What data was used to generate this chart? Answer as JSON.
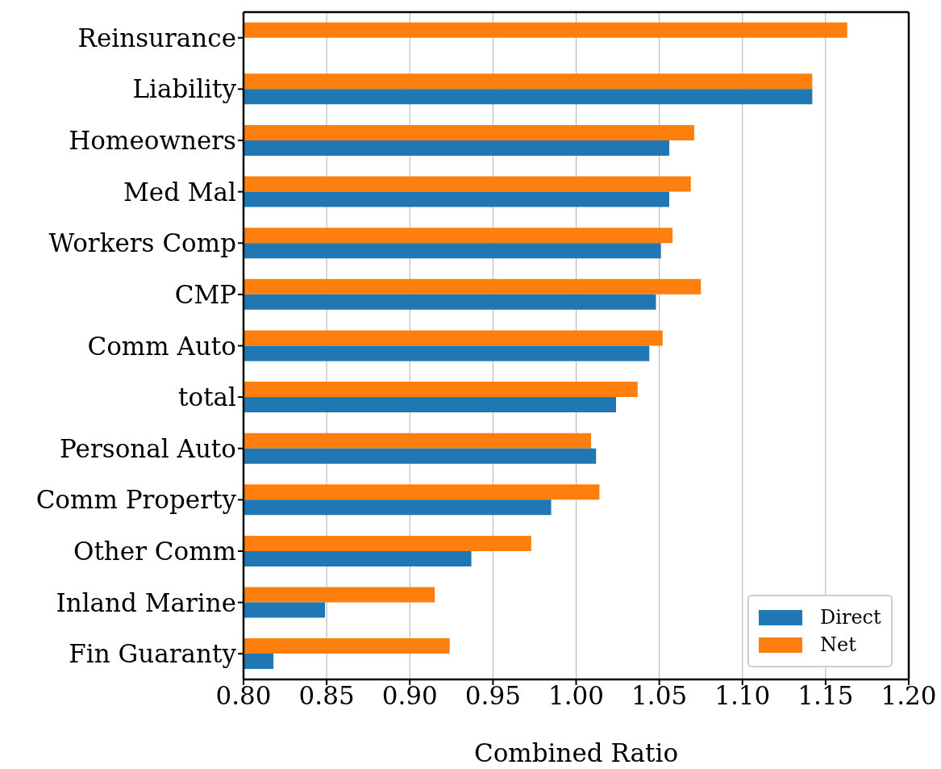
{
  "chart_data": {
    "type": "bar",
    "orientation": "horizontal",
    "xlabel": "Combined Ratio",
    "categories": [
      "Reinsurance",
      "Liability",
      "Homeowners",
      "Med Mal",
      "Workers Comp",
      "CMP",
      "Comm Auto",
      "total",
      "Personal Auto",
      "Comm Property",
      "Other Comm",
      "Inland Marine",
      "Fin Guaranty"
    ],
    "series": [
      {
        "name": "Direct",
        "color": "#1f77b4",
        "values": [
          null,
          1.142,
          1.056,
          1.056,
          1.051,
          1.048,
          1.044,
          1.024,
          1.012,
          0.985,
          0.937,
          0.849,
          0.818
        ]
      },
      {
        "name": "Net",
        "color": "#ff7f0e",
        "values": [
          1.163,
          1.142,
          1.071,
          1.069,
          1.058,
          1.075,
          1.052,
          1.037,
          1.009,
          1.014,
          0.973,
          0.915,
          0.924
        ]
      }
    ],
    "xlim": [
      0.8,
      1.2
    ],
    "xticks": [
      {
        "value": 0.8,
        "label": "0.80"
      },
      0.85,
      {
        "value": 0.9,
        "label": "0.90"
      },
      0.95,
      {
        "value": 1.0,
        "label": "1.00"
      },
      1.05,
      {
        "value": 1.1,
        "label": "1.10"
      },
      1.15,
      {
        "value": 1.2,
        "label": "1.20"
      }
    ],
    "grid": "x",
    "legend": "bottom right"
  }
}
